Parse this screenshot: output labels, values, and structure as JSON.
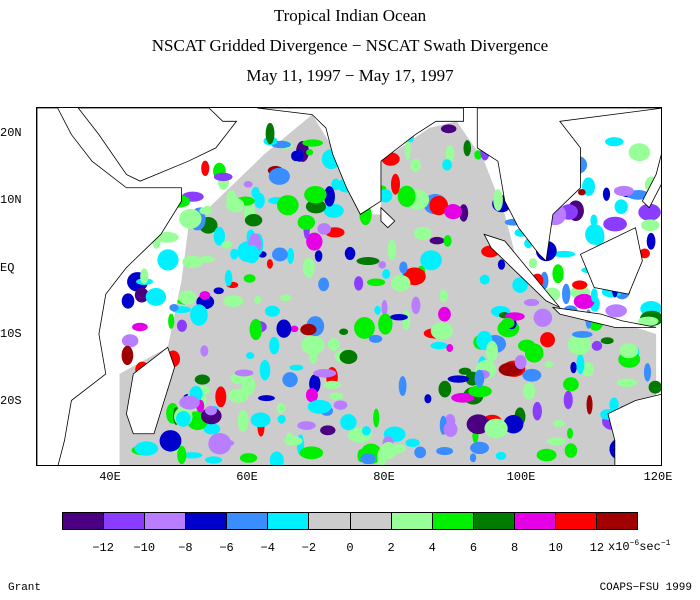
{
  "titles": {
    "line1": "Tropical Indian Ocean",
    "line2": "NSCAT Gridded Divergence − NSCAT Swath Divergence",
    "line3": "May 11, 1997 − May 17, 1997"
  },
  "axes": {
    "lat_labels": [
      "20N",
      "10N",
      "EQ",
      "10S",
      "20S"
    ],
    "lat_values": [
      20,
      10,
      0,
      -10,
      -20
    ],
    "lon_labels": [
      "40E",
      "60E",
      "80E",
      "100E",
      "120E"
    ],
    "lon_values": [
      40,
      60,
      80,
      100,
      120
    ],
    "lon_range": [
      30,
      121
    ],
    "lat_range": [
      -30,
      24
    ]
  },
  "colorbar": {
    "colors": [
      "#4b0082",
      "#8a3cff",
      "#b97dff",
      "#0000cd",
      "#3a8dff",
      "#00f0ff",
      "#cccccc",
      "#cccccc",
      "#98ff98",
      "#00f000",
      "#007a00",
      "#e600e6",
      "#ff0000",
      "#a00000"
    ],
    "tick_labels": [
      "−12",
      "−10",
      "−8",
      "−6",
      "−4",
      "−2",
      "0",
      "2",
      "4",
      "6",
      "8",
      "10",
      "12"
    ],
    "unit_base": "x10",
    "unit_exp": "−6",
    "unit_tail": "sec",
    "unit_exp2": "−1"
  },
  "credits": {
    "left": "Grant",
    "right": "COAPS−FSU 1999"
  },
  "ocean_fill_color": "#cccccc",
  "land_color": "#ffffff"
}
